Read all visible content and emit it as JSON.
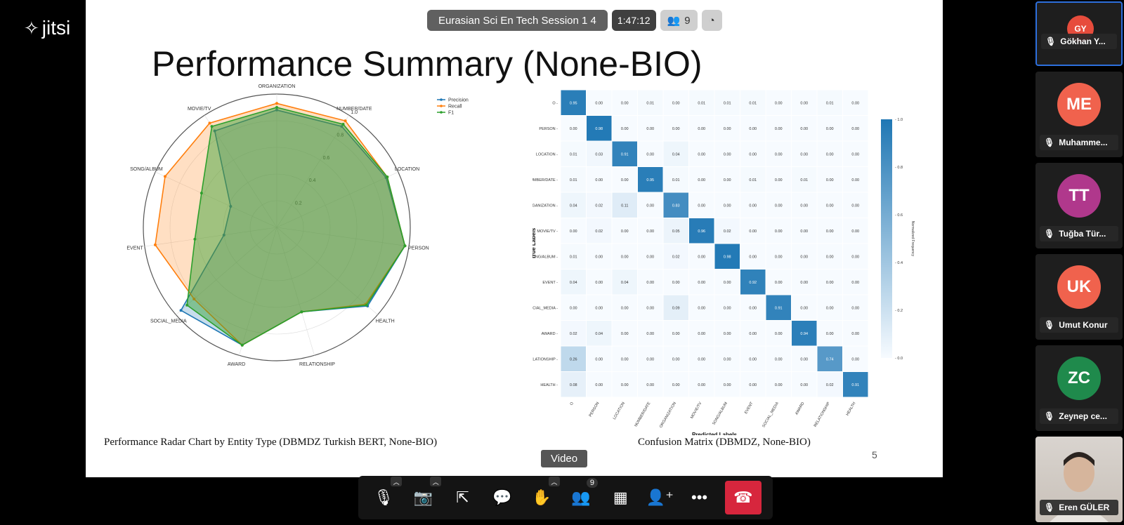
{
  "app": {
    "brand": "jitsi"
  },
  "topbar": {
    "meeting_title": "Eurasian Sci En Tech Session 1 4",
    "timer": "1:47:12",
    "participants_count": "9"
  },
  "slide": {
    "title": "Performance Summary (None-BIO)",
    "radar_caption": "Performance Radar Chart by Entity Type (DBMDZ Turkish BERT, None-BIO)",
    "cm_caption": "Confusion Matrix (DBMDZ, None-BIO)",
    "page_number": "5"
  },
  "video_button": "Video",
  "toolbar": {
    "participants_badge": "9"
  },
  "participants": [
    {
      "initials": "GY",
      "name": "Gökhan Y...",
      "color": "#e74c3c"
    },
    {
      "initials": "ME",
      "name": "Muhamme...",
      "color": "#f0624d"
    },
    {
      "initials": "TT",
      "name": "Tuğba Tür...",
      "color": "#b0388c"
    },
    {
      "initials": "UK",
      "name": "Umut Konur",
      "color": "#f0624d"
    },
    {
      "initials": "ZC",
      "name": "Zeynep ce...",
      "color": "#1f8a4c"
    },
    {
      "initials": "",
      "name": "Eren GÜLER",
      "color": "#cfc8c0"
    }
  ],
  "chart_data": [
    {
      "type": "radar",
      "categories": [
        "ORGANIZATION",
        "NUMBER/DATE",
        "LOCATION",
        "PERSON",
        "HEALTH",
        "RELATIONSHIP",
        "AWARD",
        "SOCIAL_MEDIA",
        "EVENT",
        "SONG/ALBUM",
        "MOVIE/TV"
      ],
      "rticks": [
        "0.2",
        "0.4",
        "0.6",
        "0.8",
        "1.0"
      ],
      "series": [
        {
          "name": "Precision",
          "color": "#1f77b4",
          "values": [
            0.88,
            0.9,
            0.9,
            0.97,
            0.9,
            0.66,
            0.92,
            0.95,
            0.4,
            0.38,
            0.86
          ]
        },
        {
          "name": "Recall",
          "color": "#ff7f0e",
          "values": [
            0.93,
            0.95,
            0.91,
            0.97,
            0.88,
            0.66,
            0.92,
            0.82,
            0.92,
            0.92,
            0.93
          ]
        },
        {
          "name": "F1",
          "color": "#2ca02c",
          "values": [
            0.9,
            0.92,
            0.91,
            0.97,
            0.89,
            0.66,
            0.92,
            0.89,
            0.62,
            0.62,
            0.9
          ]
        }
      ]
    },
    {
      "type": "heatmap",
      "labels": [
        "O",
        "PERSON",
        "LOCATION",
        "NUMBER/DATE",
        "ORGANIZATION",
        "MOVIE/TV",
        "SONG/ALBUM",
        "EVENT",
        "SOCIAL_MEDIA",
        "AWARD",
        "RELATIONSHIP",
        "HEALTH"
      ],
      "xlabel": "Predicted Labels",
      "ylabel": "True Labels",
      "colorbar_label": "Normalized Frequency",
      "colorbar_ticks": [
        "1.0",
        "0.8",
        "0.6",
        "0.4",
        "0.2",
        "0.0"
      ],
      "matrix": [
        [
          0.95,
          0.0,
          0.0,
          0.01,
          0.0,
          0.01,
          0.01,
          0.01,
          0.0,
          0.0,
          0.01,
          0.0
        ],
        [
          0.0,
          0.98,
          0.0,
          0.0,
          0.0,
          0.0,
          0.0,
          0.0,
          0.0,
          0.0,
          0.0,
          0.0
        ],
        [
          0.01,
          0.03,
          0.91,
          0.0,
          0.04,
          0.0,
          0.0,
          0.0,
          0.0,
          0.0,
          0.0,
          0.0
        ],
        [
          0.01,
          0.0,
          0.0,
          0.95,
          0.01,
          0.0,
          0.0,
          0.01,
          0.0,
          0.01,
          0.0,
          0.0
        ],
        [
          0.04,
          0.02,
          0.11,
          0.0,
          0.83,
          0.0,
          0.0,
          0.0,
          0.0,
          0.0,
          0.0,
          0.0
        ],
        [
          0.0,
          0.02,
          0.0,
          0.0,
          0.05,
          0.96,
          0.02,
          0.0,
          0.0,
          0.0,
          0.0,
          0.0
        ],
        [
          0.01,
          0.0,
          0.0,
          0.0,
          0.02,
          0.0,
          0.98,
          0.0,
          0.0,
          0.0,
          0.0,
          0.0
        ],
        [
          0.04,
          0.0,
          0.04,
          0.0,
          0.0,
          0.0,
          0.0,
          0.92,
          0.0,
          0.0,
          0.0,
          0.0
        ],
        [
          0.0,
          0.0,
          0.0,
          0.0,
          0.09,
          0.0,
          0.0,
          0.0,
          0.91,
          0.0,
          0.0,
          0.0
        ],
        [
          0.02,
          0.04,
          0.0,
          0.0,
          0.0,
          0.0,
          0.0,
          0.0,
          0.0,
          0.94,
          0.0,
          0.0
        ],
        [
          0.26,
          0.0,
          0.0,
          0.0,
          0.0,
          0.0,
          0.0,
          0.0,
          0.0,
          0.0,
          0.74,
          0.0
        ],
        [
          0.08,
          0.0,
          0.0,
          0.0,
          0.0,
          0.0,
          0.0,
          0.0,
          0.0,
          0.0,
          0.02,
          0.91
        ]
      ]
    }
  ]
}
